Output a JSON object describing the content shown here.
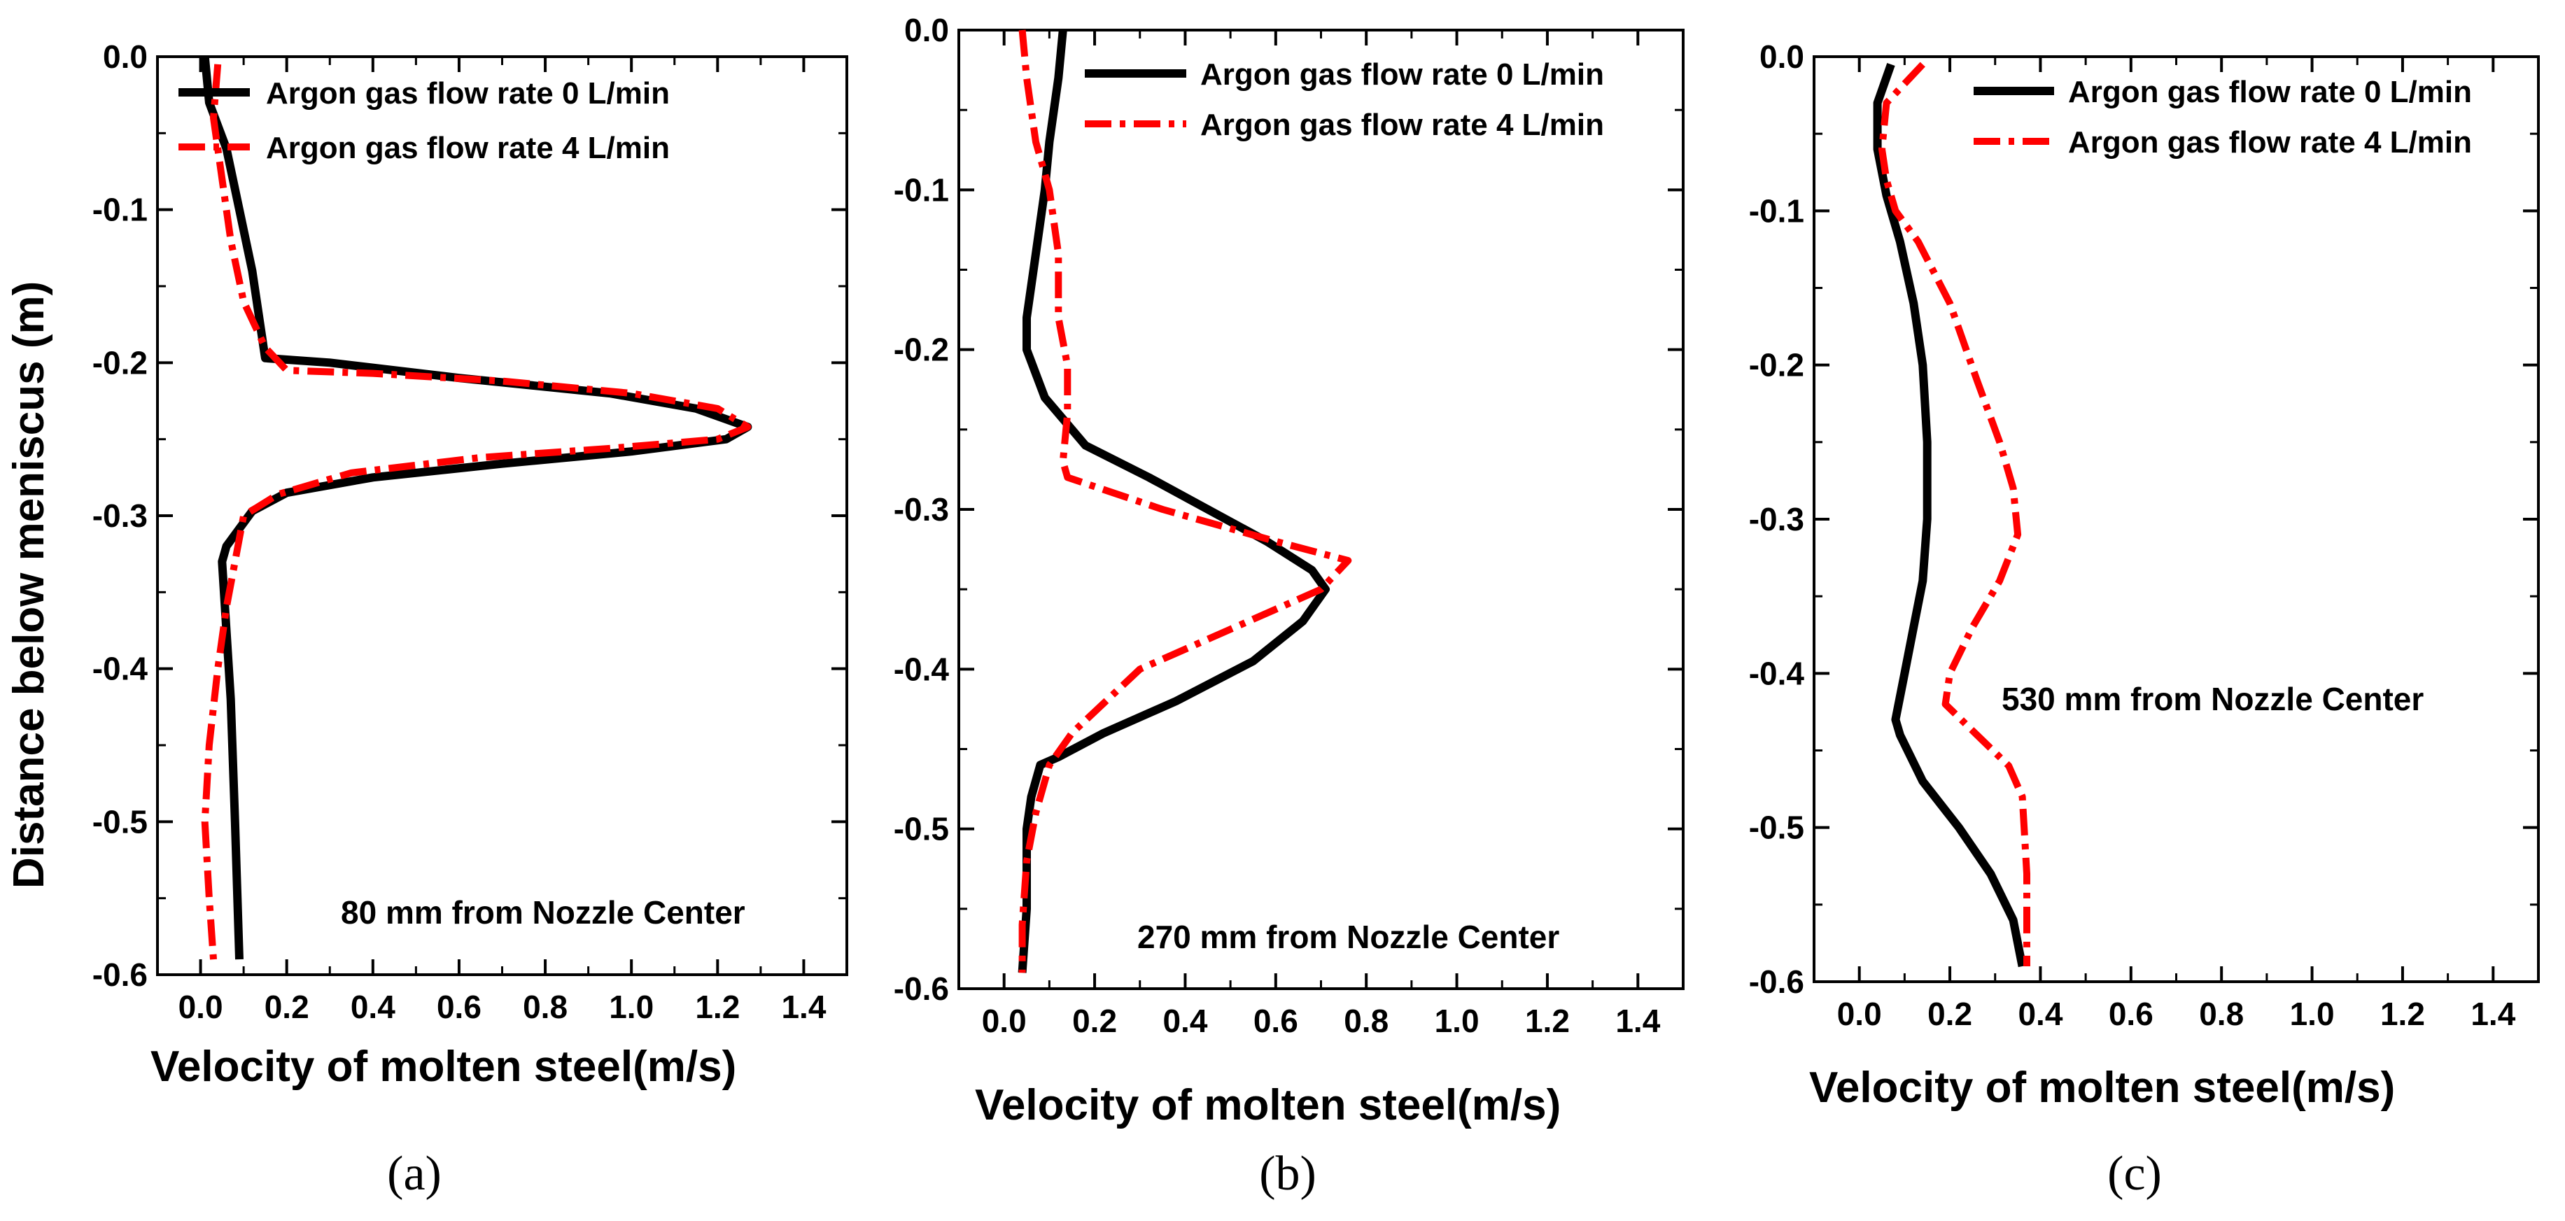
{
  "chart_data": [
    {
      "id": "a",
      "type": "line",
      "caption": "(a)",
      "xlabel": "Velocity of molten steel(m/s)",
      "ylabel": "Distance below meniscus (m)",
      "xlim": [
        -0.1,
        1.5
      ],
      "ylim": [
        -0.6,
        0.0
      ],
      "xticks": [
        0.0,
        0.2,
        0.4,
        0.6,
        0.8,
        1.0,
        1.2,
        1.4
      ],
      "xtick_labels": [
        "0.0",
        "0.2",
        "0.4",
        "0.6",
        "0.8",
        "1.0",
        "1.2",
        "1.4"
      ],
      "yticks": [
        0.0,
        -0.1,
        -0.2,
        -0.3,
        -0.4,
        -0.5,
        -0.6
      ],
      "ytick_labels": [
        "0.0",
        "-0.1",
        "-0.2",
        "-0.3",
        "-0.4",
        "-0.5",
        "-0.6"
      ],
      "legend": "top-right",
      "annotation": "80 mm from Nozzle Center",
      "series": [
        {
          "name": "Argon gas flow rate 0 L/min",
          "color": "#000000",
          "style": "solid",
          "x": [
            0.01,
            0.02,
            0.06,
            0.09,
            0.12,
            0.15,
            0.3,
            0.6,
            0.95,
            1.15,
            1.27,
            1.22,
            1.0,
            0.7,
            0.4,
            0.2,
            0.12,
            0.06,
            0.05,
            0.07,
            0.08,
            0.09
          ],
          "y": [
            0.0,
            -0.03,
            -0.06,
            -0.1,
            -0.14,
            -0.197,
            -0.2,
            -0.21,
            -0.22,
            -0.23,
            -0.242,
            -0.25,
            -0.258,
            -0.266,
            -0.275,
            -0.285,
            -0.297,
            -0.32,
            -0.33,
            -0.42,
            -0.5,
            -0.59
          ]
        },
        {
          "name": "Argon gas flow rate 4 L/min",
          "color": "#ff0000",
          "style": "dashdot",
          "x": [
            0.04,
            0.03,
            0.05,
            0.07,
            0.1,
            0.15,
            0.2,
            0.4,
            0.7,
            1.0,
            1.2,
            1.27,
            1.2,
            0.95,
            0.65,
            0.35,
            0.18,
            0.1,
            0.08,
            0.06,
            0.04,
            0.02,
            0.01,
            0.02,
            0.03
          ],
          "y": [
            -0.005,
            -0.04,
            -0.08,
            -0.12,
            -0.16,
            -0.19,
            -0.205,
            -0.207,
            -0.212,
            -0.22,
            -0.23,
            -0.242,
            -0.25,
            -0.256,
            -0.262,
            -0.272,
            -0.286,
            -0.3,
            -0.33,
            -0.36,
            -0.4,
            -0.45,
            -0.5,
            -0.55,
            -0.59
          ]
        }
      ]
    },
    {
      "id": "b",
      "type": "line",
      "caption": "(b)",
      "xlabel": "Velocity of molten steel(m/s)",
      "ylabel": "",
      "xlim": [
        -0.1,
        1.5
      ],
      "ylim": [
        -0.6,
        0.0
      ],
      "xticks": [
        0.0,
        0.2,
        0.4,
        0.6,
        0.8,
        1.0,
        1.2,
        1.4
      ],
      "xtick_labels": [
        "0.0",
        "0.2",
        "0.4",
        "0.6",
        "0.8",
        "1.0",
        "1.2",
        "1.4"
      ],
      "yticks": [
        0.0,
        -0.1,
        -0.2,
        -0.3,
        -0.4,
        -0.5,
        -0.6
      ],
      "ytick_labels": [
        "0.0",
        "-0.1",
        "-0.2",
        "-0.3",
        "-0.4",
        "-0.5",
        "-0.6"
      ],
      "legend": "top-right",
      "annotation": "270 mm from Nozzle Center",
      "series": [
        {
          "name": "Argon gas flow rate 0 L/min",
          "color": "#000000",
          "style": "solid",
          "x": [
            0.13,
            0.12,
            0.1,
            0.09,
            0.07,
            0.05,
            0.05,
            0.09,
            0.18,
            0.32,
            0.45,
            0.58,
            0.68,
            0.71,
            0.66,
            0.55,
            0.38,
            0.22,
            0.12,
            0.08,
            0.06,
            0.05,
            0.05,
            0.04
          ],
          "y": [
            0.0,
            -0.03,
            -0.07,
            -0.1,
            -0.14,
            -0.18,
            -0.2,
            -0.23,
            -0.26,
            -0.28,
            -0.3,
            -0.32,
            -0.338,
            -0.35,
            -0.37,
            -0.395,
            -0.42,
            -0.44,
            -0.455,
            -0.46,
            -0.48,
            -0.5,
            -0.55,
            -0.59
          ]
        },
        {
          "name": "Argon gas flow rate 4 L/min",
          "color": "#ff0000",
          "style": "dashdot",
          "x": [
            0.04,
            0.05,
            0.07,
            0.1,
            0.12,
            0.12,
            0.14,
            0.14,
            0.13,
            0.14,
            0.35,
            0.6,
            0.76,
            0.7,
            0.5,
            0.3,
            0.15,
            0.1,
            0.07,
            0.05,
            0.04,
            0.04
          ],
          "y": [
            0.0,
            -0.03,
            -0.07,
            -0.1,
            -0.14,
            -0.18,
            -0.21,
            -0.24,
            -0.27,
            -0.28,
            -0.3,
            -0.32,
            -0.332,
            -0.35,
            -0.375,
            -0.4,
            -0.44,
            -0.46,
            -0.49,
            -0.52,
            -0.56,
            -0.59
          ]
        }
      ]
    },
    {
      "id": "c",
      "type": "line",
      "caption": "(c)",
      "xlabel": "Velocity of molten steel(m/s)",
      "ylabel": "",
      "xlim": [
        -0.1,
        1.5
      ],
      "ylim": [
        -0.6,
        0.0
      ],
      "xticks": [
        0.0,
        0.2,
        0.4,
        0.6,
        0.8,
        1.0,
        1.2,
        1.4
      ],
      "xtick_labels": [
        "0.0",
        "0.2",
        "0.4",
        "0.6",
        "0.8",
        "1.0",
        "1.2",
        "1.4"
      ],
      "yticks": [
        0.0,
        -0.1,
        -0.2,
        -0.3,
        -0.4,
        -0.5,
        -0.6
      ],
      "ytick_labels": [
        "0.0",
        "-0.1",
        "-0.2",
        "-0.3",
        "-0.4",
        "-0.5",
        "-0.6"
      ],
      "legend": "top-right",
      "annotation": "530 mm from Nozzle Center",
      "series": [
        {
          "name": "Argon gas flow rate 0 L/min",
          "color": "#000000",
          "style": "solid",
          "x": [
            0.07,
            0.04,
            0.04,
            0.06,
            0.09,
            0.12,
            0.14,
            0.15,
            0.15,
            0.14,
            0.12,
            0.1,
            0.08,
            0.09,
            0.14,
            0.22,
            0.29,
            0.34,
            0.36
          ],
          "y": [
            -0.005,
            -0.03,
            -0.06,
            -0.09,
            -0.12,
            -0.16,
            -0.2,
            -0.25,
            -0.3,
            -0.34,
            -0.37,
            -0.4,
            -0.43,
            -0.44,
            -0.47,
            -0.5,
            -0.53,
            -0.56,
            -0.59
          ]
        },
        {
          "name": "Argon gas flow rate 4 L/min",
          "color": "#ff0000",
          "style": "dashdot",
          "x": [
            0.14,
            0.06,
            0.05,
            0.06,
            0.08,
            0.13,
            0.2,
            0.26,
            0.31,
            0.34,
            0.35,
            0.31,
            0.25,
            0.2,
            0.19,
            0.26,
            0.33,
            0.36,
            0.37,
            0.37
          ],
          "y": [
            -0.005,
            -0.03,
            -0.06,
            -0.08,
            -0.1,
            -0.12,
            -0.16,
            -0.21,
            -0.25,
            -0.28,
            -0.31,
            -0.34,
            -0.37,
            -0.4,
            -0.42,
            -0.44,
            -0.46,
            -0.48,
            -0.53,
            -0.59
          ]
        }
      ]
    }
  ]
}
